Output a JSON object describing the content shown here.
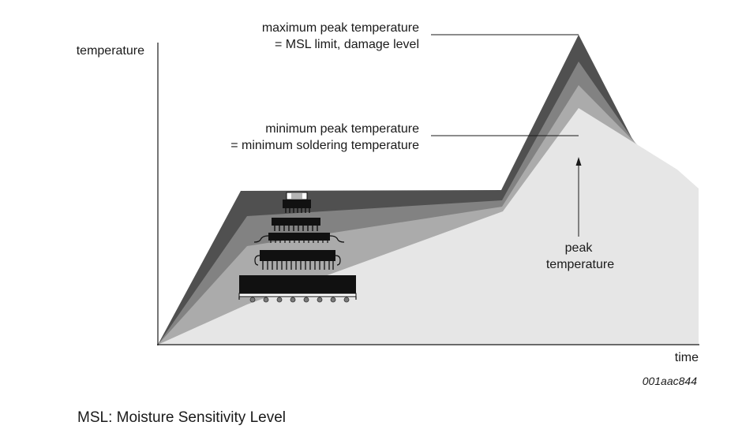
{
  "axes": {
    "y_label": "temperature",
    "x_label": "time"
  },
  "annotations": {
    "max_peak": {
      "line1": "maximum peak temperature",
      "line2": "= MSL limit, damage level"
    },
    "min_peak": {
      "line1": "minimum peak temperature",
      "line2": "= minimum soldering temperature"
    },
    "peak": {
      "line1": "peak",
      "line2": "temperature"
    }
  },
  "figure_code": "001aac844",
  "caption": "MSL: Moisture Sensitivity Level",
  "colors": {
    "band_darkest": "#505050",
    "band_dark": "#828282",
    "band_mid": "#ababab",
    "band_light": "#e6e6e6",
    "component": "#111111"
  }
}
